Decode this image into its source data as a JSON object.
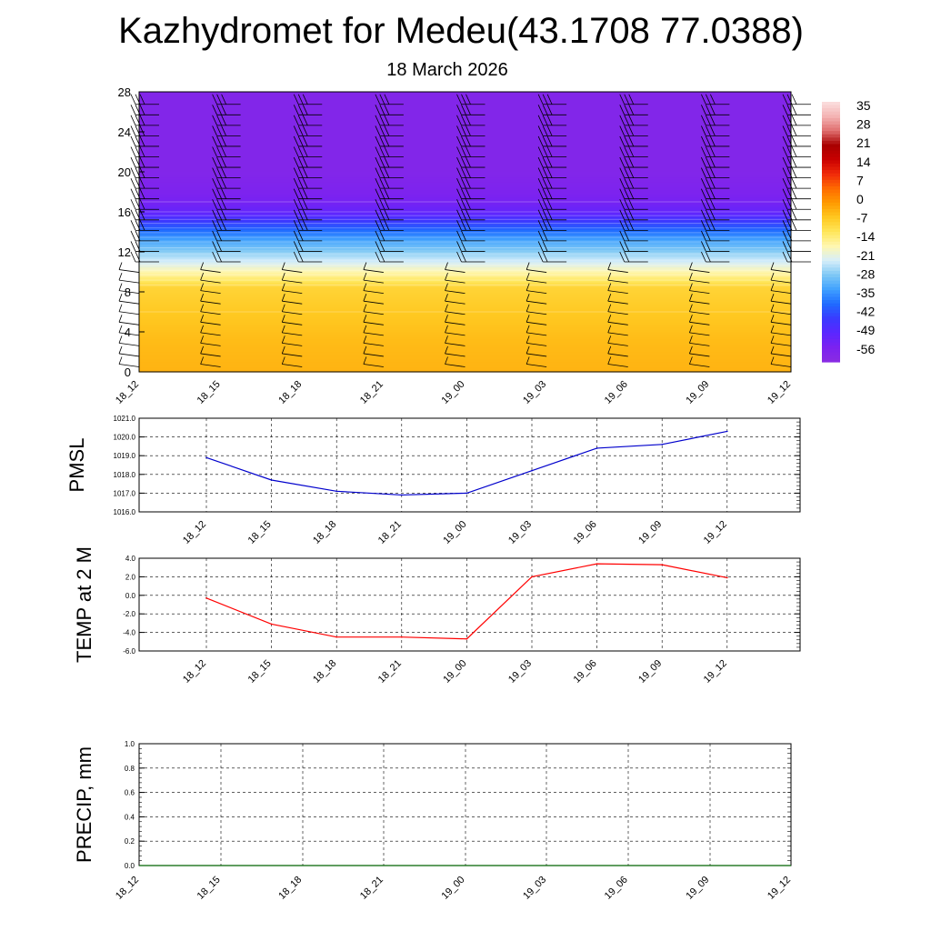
{
  "title": "Kazhydromet for Medeu(43.1708 77.0388)",
  "subtitle": "18 March 2026",
  "chart_data": [
    {
      "type": "heatmap",
      "name": "temperature-cross-section",
      "x_ticks": [
        "18_12",
        "18_15",
        "18_18",
        "18_21",
        "19_00",
        "19_03",
        "19_06",
        "19_09",
        "19_12"
      ],
      "y_ticks": [
        "0",
        "4",
        "8",
        "12",
        "16",
        "20",
        "24",
        "28"
      ],
      "ylim": [
        0,
        28
      ],
      "colorbar_labels": [
        "35",
        "28",
        "21",
        "14",
        "7",
        "0",
        "-7",
        "-14",
        "-21",
        "-28",
        "-35",
        "-42",
        "-49",
        "-56"
      ],
      "colorbar_range": [
        -63,
        42
      ],
      "colorbar_colors": [
        "#8a2be2",
        "#7b22f0",
        "#5b26ff",
        "#3a3aff",
        "#1f6bff",
        "#3fa0ff",
        "#7ec8f5",
        "#d6eefa",
        "#fff7b0",
        "#ffe65a",
        "#ffc820",
        "#ff9a00",
        "#ff6a00",
        "#f02a0a",
        "#c80000",
        "#a80000",
        "#e07070",
        "#f4b4b4",
        "#fbe0e0"
      ],
      "temperature_profile": [
        {
          "level": 0,
          "value": -2
        },
        {
          "level": 3,
          "value": -3
        },
        {
          "level": 6,
          "value": -5
        },
        {
          "level": 8.5,
          "value": -7
        },
        {
          "level": 9.5,
          "value": -13
        },
        {
          "level": 11,
          "value": -22
        },
        {
          "level": 13,
          "value": -32
        },
        {
          "level": 15,
          "value": -45
        },
        {
          "level": 16,
          "value": -53
        },
        {
          "level": 17,
          "value": -56
        },
        {
          "level": 18,
          "value": -58
        },
        {
          "level": 20,
          "value": -60
        },
        {
          "level": 24,
          "value": -60
        },
        {
          "level": 28,
          "value": -60
        }
      ],
      "wind_barb_columns": [
        "18_12",
        "18_15",
        "18_18",
        "18_21",
        "19_00",
        "19_03",
        "19_06",
        "19_09",
        "19_12"
      ]
    },
    {
      "type": "line",
      "name": "pmsl",
      "ylabel": "PMSL",
      "categories": [
        "18_12",
        "18_15",
        "18_18",
        "18_21",
        "19_00",
        "19_03",
        "19_06",
        "19_09",
        "19_12"
      ],
      "values": [
        1018.9,
        1017.7,
        1017.1,
        1016.9,
        1017.0,
        1018.2,
        1019.4,
        1019.6,
        1020.3
      ],
      "ylim": [
        1016.0,
        1021.0
      ],
      "y_ticks": [
        "1016.0",
        "1017.0",
        "1018.0",
        "1019.0",
        "1020.0",
        "1021.0"
      ],
      "color": "#0000cc"
    },
    {
      "type": "line",
      "name": "temp-2m",
      "ylabel": "TEMP at 2 M",
      "categories": [
        "18_12",
        "18_15",
        "18_18",
        "18_21",
        "19_00",
        "19_03",
        "19_06",
        "19_09",
        "19_12"
      ],
      "values": [
        -0.3,
        -3.1,
        -4.5,
        -4.5,
        -4.7,
        2.0,
        3.4,
        3.3,
        1.9
      ],
      "ylim": [
        -6.0,
        4.0
      ],
      "y_ticks": [
        "-6.0",
        "-4.0",
        "-2.0",
        "0.0",
        "2.0",
        "4.0"
      ],
      "color": "#ff0000"
    },
    {
      "type": "line",
      "name": "precip",
      "ylabel": "PRECIP, mm",
      "categories": [
        "18_12",
        "18_15",
        "18_18",
        "18_21",
        "19_00",
        "19_03",
        "19_06",
        "19_09",
        "19_12"
      ],
      "values": [
        0,
        0,
        0,
        0,
        0,
        0,
        0,
        0,
        0
      ],
      "ylim": [
        0.0,
        1.0
      ],
      "y_ticks": [
        "0.0",
        "0.2",
        "0.4",
        "0.6",
        "0.8",
        "1.0"
      ],
      "color": "#006400"
    }
  ]
}
